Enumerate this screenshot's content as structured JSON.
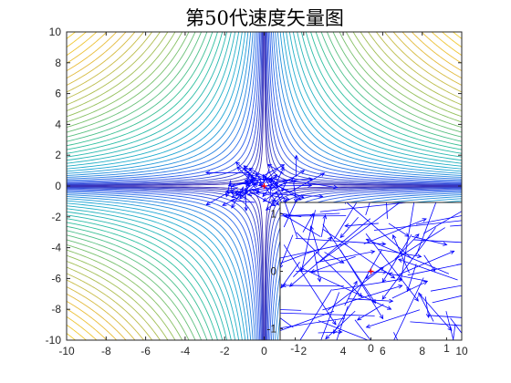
{
  "chart_data": [
    {
      "type": "contour+quiver",
      "title": "第50代速度矢量图",
      "xlim": [
        -10,
        10
      ],
      "ylim": [
        -10,
        10
      ],
      "xticks": [
        -10,
        -8,
        -6,
        -4,
        -2,
        0,
        2,
        4,
        6,
        8,
        10
      ],
      "yticks": [
        -10,
        -8,
        -6,
        -4,
        -2,
        0,
        2,
        4,
        6,
        8,
        10
      ],
      "contour_levels": 40,
      "colormap": [
        "#3e26a8",
        "#2e5ced",
        "#1eaad3",
        "#2ec09f",
        "#91c05d",
        "#e7ba3a",
        "#f9d62c"
      ],
      "arrow_color": "#0000ff",
      "center_marker": {
        "x": 0,
        "y": 0,
        "color": "#ff0000"
      },
      "grid": false
    },
    {
      "type": "quiver",
      "xlim": [
        -1.2,
        1.2
      ],
      "ylim": [
        -1.2,
        1.2
      ],
      "xticks": [
        -1,
        0,
        1
      ],
      "yticks": [
        -1,
        0,
        1
      ],
      "arrow_color": "#0000ff",
      "center_marker": {
        "x": 0,
        "y": 0,
        "color": "#ff0000"
      },
      "grid": false
    }
  ]
}
